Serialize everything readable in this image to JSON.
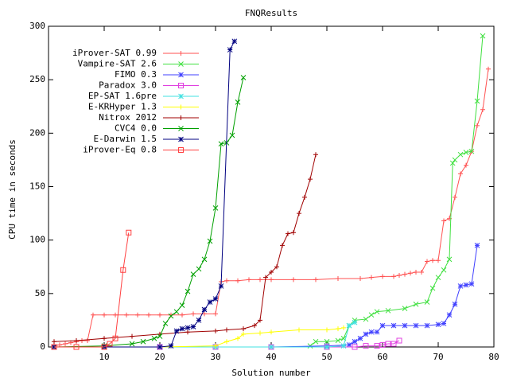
{
  "chart_data": {
    "type": "line",
    "title": "FNQResults",
    "x_label": "Solution number",
    "y_label": "CPU time in seconds",
    "xlim": [
      0,
      80
    ],
    "ylim": [
      0,
      300
    ],
    "xticks": [
      10,
      20,
      30,
      40,
      50,
      60,
      70,
      80
    ],
    "yticks": [
      0,
      50,
      100,
      150,
      200,
      250,
      300
    ],
    "grid": false,
    "legend": "upper left",
    "series": [
      {
        "name": "iProver-SAT 0.99",
        "color": "#ff5050",
        "marker": "plus",
        "x": [
          1,
          2,
          3,
          4,
          5,
          6,
          7,
          8,
          10,
          12,
          14,
          16,
          18,
          20,
          22,
          24,
          26,
          28,
          30,
          31,
          32,
          34,
          36,
          38,
          40,
          44,
          48,
          52,
          56,
          58,
          60,
          62,
          63,
          64,
          65,
          66,
          67,
          68,
          69,
          70,
          71,
          72,
          73,
          74,
          75,
          76,
          77,
          78,
          79
        ],
        "values": [
          1,
          2,
          3,
          4,
          5,
          6,
          6,
          30,
          30,
          30,
          30,
          30,
          30,
          30,
          30,
          30,
          31,
          31,
          31,
          61,
          62,
          62,
          63,
          63,
          63,
          63,
          63,
          64,
          64,
          65,
          66,
          66,
          67,
          68,
          69,
          70,
          70,
          80,
          81,
          81,
          118,
          120,
          140,
          162,
          170,
          183,
          207,
          222,
          260
        ]
      },
      {
        "name": "Vampire-SAT 2.6",
        "color": "#40e040",
        "marker": "x",
        "x": [
          47,
          48,
          50,
          52,
          53,
          54,
          55,
          57,
          58,
          59,
          61,
          64,
          66,
          68,
          69,
          70,
          71,
          72,
          72.6,
          73,
          74,
          75,
          76,
          77,
          78
        ],
        "values": [
          1,
          5,
          5,
          6,
          8,
          20,
          25,
          26,
          30,
          33,
          34,
          36,
          40,
          42,
          55,
          65,
          72,
          82,
          172,
          175,
          180,
          182,
          183,
          230,
          291
        ]
      },
      {
        "name": "FIMO 0.3",
        "color": "#4040ff",
        "marker": "star",
        "x": [
          1,
          10,
          20,
          30,
          40,
          50,
          54,
          55,
          56,
          57,
          58,
          59,
          60,
          62,
          64,
          66,
          68,
          70,
          71,
          72,
          73,
          74,
          75,
          76,
          77
        ],
        "values": [
          0,
          0,
          0,
          0,
          0,
          1,
          2,
          5,
          8,
          12,
          14,
          14,
          20,
          20,
          20,
          20,
          20,
          21,
          22,
          30,
          40,
          57,
          58,
          59,
          95
        ]
      },
      {
        "name": "Paradox 3.0",
        "color": "#e040e0",
        "marker": "square",
        "x": [
          1,
          10,
          20,
          30,
          40,
          50,
          55,
          57,
          59,
          60,
          61,
          62,
          63
        ],
        "values": [
          0,
          0,
          0,
          0,
          0,
          0,
          0,
          1,
          1,
          2,
          3,
          3,
          6
        ]
      },
      {
        "name": "EP-SAT 1.6pre",
        "color": "#40e0e0",
        "marker": "star",
        "x": [
          1,
          10,
          20,
          30,
          40,
          50,
          53,
          54,
          55
        ],
        "values": [
          0,
          0,
          0,
          0,
          0,
          0,
          1,
          20,
          23
        ]
      },
      {
        "name": "E-KRHyper 1.3",
        "color": "#ffff00",
        "marker": "plus",
        "x": [
          1,
          10,
          20,
          30,
          32,
          34,
          35,
          38,
          40,
          45,
          50,
          52,
          53
        ],
        "values": [
          0,
          0,
          0,
          1,
          5,
          8,
          12,
          13,
          14,
          16,
          16,
          17,
          18
        ]
      },
      {
        "name": "Nitrox 2012",
        "color": "#a00000",
        "marker": "plus",
        "x": [
          1,
          5,
          10,
          15,
          20,
          25,
          30,
          32,
          35,
          37,
          38,
          39,
          40,
          41,
          42,
          43,
          44,
          45,
          46,
          47,
          48
        ],
        "values": [
          5,
          6,
          8,
          10,
          12,
          14,
          15,
          16,
          17,
          20,
          25,
          65,
          70,
          75,
          95,
          106,
          107,
          125,
          140,
          157,
          180
        ]
      },
      {
        "name": "CVC4 0.0",
        "color": "#00a000",
        "marker": "x",
        "x": [
          1,
          10,
          15,
          17,
          19,
          20,
          21,
          22,
          23,
          24,
          25,
          26,
          27,
          28,
          29,
          30,
          31,
          32,
          33,
          34,
          35
        ],
        "values": [
          0,
          1,
          3,
          5,
          8,
          10,
          22,
          29,
          33,
          39,
          52,
          68,
          73,
          82,
          99,
          130,
          190,
          191,
          198,
          229,
          252
        ]
      },
      {
        "name": "E-Darwin 1.5",
        "color": "#000080",
        "marker": "star",
        "x": [
          1,
          10,
          20,
          22,
          23,
          24,
          25,
          26,
          27,
          28,
          29,
          30,
          31,
          32.6,
          33.4
        ],
        "values": [
          0,
          0,
          0,
          1,
          15,
          17,
          18,
          19,
          25,
          35,
          42,
          45,
          57,
          278,
          286
        ]
      },
      {
        "name": "iProver-Eq 0.8",
        "color": "#ff4040",
        "marker": "square",
        "x": [
          1,
          5,
          10,
          11,
          12,
          13.4,
          14.4
        ],
        "values": [
          0,
          0,
          0,
          3,
          8,
          72,
          107
        ]
      }
    ]
  }
}
